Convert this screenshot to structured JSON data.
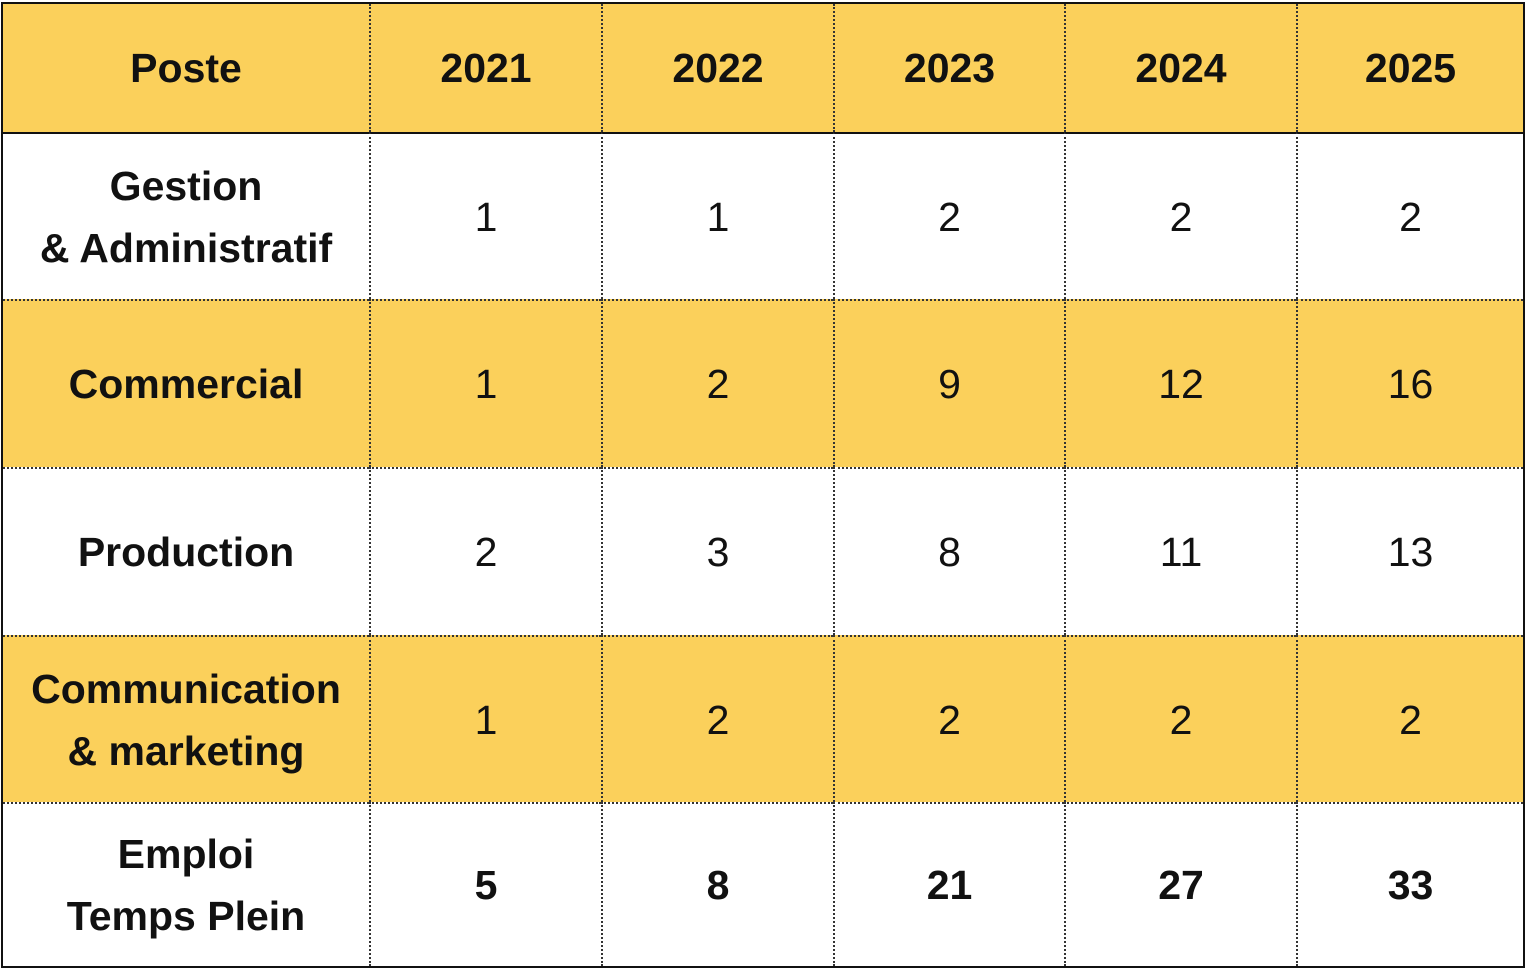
{
  "colors": {
    "header_bg": "#fbd05b",
    "band_bg": "#fbd05b",
    "plain_bg": "#ffffff",
    "text": "#111111"
  },
  "table": {
    "headers": [
      "Poste",
      "2021",
      "2022",
      "2023",
      "2024",
      "2025"
    ],
    "rows": [
      {
        "label": "Gestion\n& Administratif",
        "values": [
          "1",
          "1",
          "2",
          "2",
          "2"
        ]
      },
      {
        "label": "Commercial",
        "values": [
          "1",
          "2",
          "9",
          "12",
          "16"
        ]
      },
      {
        "label": "Production",
        "values": [
          "2",
          "3",
          "8",
          "11",
          "13"
        ]
      },
      {
        "label": "Communication\n& marketing",
        "values": [
          "1",
          "2",
          "2",
          "2",
          "2"
        ]
      },
      {
        "label": "Emploi\nTemps Plein",
        "values": [
          "5",
          "8",
          "21",
          "27",
          "33"
        ]
      }
    ]
  }
}
